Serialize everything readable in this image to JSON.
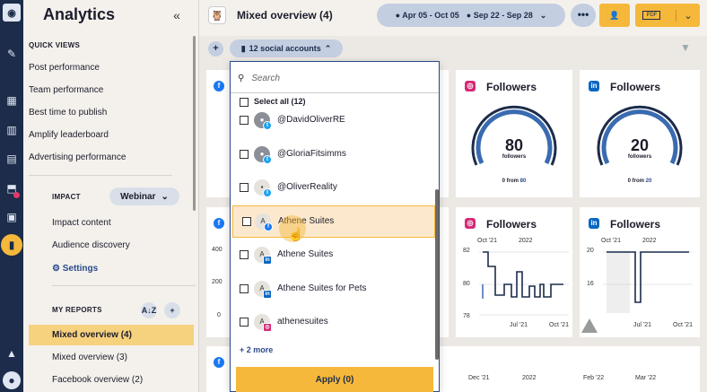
{
  "app": {
    "title": "Analytics",
    "collapse_icon": "double-chevron-left-icon"
  },
  "rail": {
    "icons": [
      "owl-logo-icon",
      "compose-icon",
      "dashboard-icon",
      "streams-icon",
      "calendar-icon",
      "inbox-icon",
      "clipboard-icon",
      "analytics-icon",
      "up-arrow-icon",
      "profile-icon"
    ]
  },
  "sidebar": {
    "quick_views_title": "QUICK VIEWS",
    "quick_views": [
      "Post performance",
      "Team performance",
      "Best time to publish",
      "Amplify leaderboard",
      "Advertising performance"
    ],
    "impact_title": "IMPACT",
    "webinar_label": "Webinar",
    "impact_items": [
      "Impact content",
      "Audience discovery"
    ],
    "settings_label": "⚙ Settings",
    "my_reports_title": "MY REPORTS",
    "sort_label": "A↓Z",
    "add_label": "+",
    "reports": [
      {
        "label": "Mixed overview (4)",
        "active": true
      },
      {
        "label": "Mixed overview (3)",
        "active": false
      },
      {
        "label": "Facebook overview (2)",
        "active": false
      }
    ]
  },
  "header": {
    "title": "Mixed overview (4)",
    "date_range_1": "Apr 05 - Oct 05",
    "date_range_2": "Sep 22 - Sep 28",
    "more_label": "•••",
    "pdf_label": "PDF"
  },
  "toolbar": {
    "add_label": "+",
    "accounts_label": "12 social accounts"
  },
  "cards": {
    "followers_title": "Followers",
    "ig_followers": {
      "value": "80",
      "unit": "followers",
      "from_prefix": "0 from",
      "from_value": "80"
    },
    "li_followers": {
      "value": "20",
      "unit": "followers",
      "from_prefix": "0 from",
      "from_value": "20"
    },
    "fb_axis": [
      "400",
      "200",
      "0"
    ],
    "ig_axis": [
      "82",
      "80",
      "78"
    ],
    "li_axis": [
      "20",
      "16"
    ],
    "ig_x_top": [
      "Oct '21",
      "2022"
    ],
    "ig_x_bottom": [
      "Jul '21",
      "Oct '21"
    ],
    "li_x_top": [
      "Oct '21",
      "2022"
    ],
    "li_x_bottom": [
      "Jul '21",
      "Oct '21"
    ],
    "bottom_x": [
      "Dec '21",
      "2022",
      "Feb '22",
      "Mar '22"
    ]
  },
  "dropdown": {
    "search_placeholder": "Search",
    "select_all": "Select all (12)",
    "rows": [
      {
        "label": "@DavidOliverRE",
        "network": "twitter",
        "avatar": "photo"
      },
      {
        "label": "@GloriaFitsimms",
        "network": "twitter",
        "avatar": "photo"
      },
      {
        "label": "@OliverReality",
        "network": "twitter",
        "avatar": "logo"
      },
      {
        "label": "Athene Suites",
        "network": "facebook",
        "avatar": "A"
      },
      {
        "label": "Athene Suites",
        "network": "linkedin",
        "avatar": "A"
      },
      {
        "label": "Athene Suites for Pets",
        "network": "linkedin",
        "avatar": "A"
      },
      {
        "label": "athenesuites",
        "network": "instagram",
        "avatar": "A"
      }
    ],
    "more_label": "+ 2 more",
    "apply_label": "Apply (0)"
  }
}
